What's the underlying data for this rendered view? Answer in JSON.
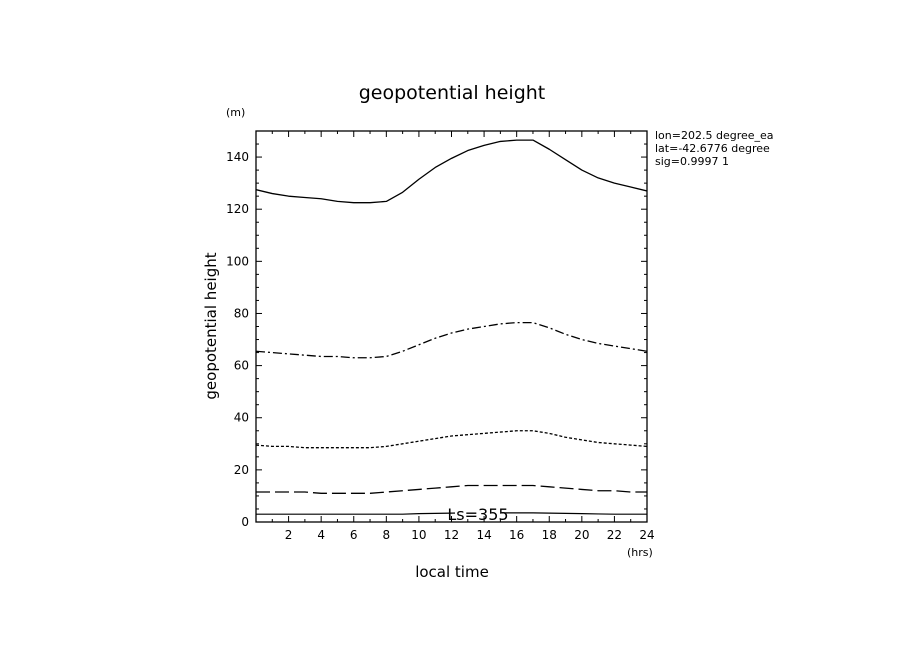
{
  "chart_data": {
    "type": "line",
    "title": "geopotential height",
    "xlabel": "local time",
    "ylabel": "geopotential height",
    "x_unit": "(hrs)",
    "y_unit": "(m)",
    "xlim": [
      0,
      24
    ],
    "ylim": [
      0,
      150
    ],
    "xticks": [
      2,
      4,
      6,
      8,
      10,
      12,
      14,
      16,
      18,
      20,
      22,
      24
    ],
    "yticks": [
      0,
      20,
      40,
      60,
      80,
      100,
      120,
      140
    ],
    "grid": false,
    "info": [
      "lon=202.5 degree_ea",
      "lat=-42.6776 degree",
      "sig=0.9997 1"
    ],
    "annotation": "Ls=355",
    "x": [
      0,
      1,
      2,
      3,
      4,
      5,
      6,
      7,
      8,
      9,
      10,
      11,
      12,
      13,
      14,
      15,
      16,
      17,
      18,
      19,
      20,
      21,
      22,
      23,
      24
    ],
    "series": [
      {
        "style": "solid",
        "values": [
          127.5,
          126.0,
          125.0,
          124.5,
          124.0,
          123.0,
          122.5,
          122.5,
          123.0,
          126.5,
          131.5,
          136.0,
          139.5,
          142.5,
          144.5,
          146.0,
          146.5,
          146.5,
          143.0,
          139.0,
          135.0,
          132.0,
          130.0,
          128.5,
          127.0
        ]
      },
      {
        "style": "dash-dot",
        "values": [
          65.5,
          65.0,
          64.5,
          64.0,
          63.5,
          63.5,
          63.0,
          63.0,
          63.5,
          65.5,
          68.0,
          70.5,
          72.5,
          74.0,
          75.0,
          76.0,
          76.5,
          76.5,
          74.5,
          72.0,
          70.0,
          68.5,
          67.5,
          66.5,
          65.5
        ]
      },
      {
        "style": "dotted",
        "values": [
          29.5,
          29.0,
          29.0,
          28.5,
          28.5,
          28.5,
          28.5,
          28.5,
          29.0,
          30.0,
          31.0,
          32.0,
          33.0,
          33.5,
          34.0,
          34.5,
          35.0,
          35.0,
          34.0,
          32.5,
          31.5,
          30.5,
          30.0,
          29.5,
          29.0
        ]
      },
      {
        "style": "long-dash",
        "values": [
          11.5,
          11.5,
          11.5,
          11.5,
          11.0,
          11.0,
          11.0,
          11.0,
          11.5,
          12.0,
          12.5,
          13.0,
          13.5,
          14.0,
          14.0,
          14.0,
          14.0,
          14.0,
          13.5,
          13.0,
          12.5,
          12.0,
          12.0,
          11.5,
          11.5
        ]
      },
      {
        "style": "solid-thin",
        "values": [
          3.0,
          3.0,
          3.0,
          3.0,
          3.0,
          3.0,
          3.0,
          3.0,
          3.0,
          3.0,
          3.2,
          3.3,
          3.4,
          3.5,
          3.5,
          3.5,
          3.5,
          3.5,
          3.4,
          3.3,
          3.2,
          3.1,
          3.0,
          3.0,
          3.0
        ]
      }
    ]
  }
}
